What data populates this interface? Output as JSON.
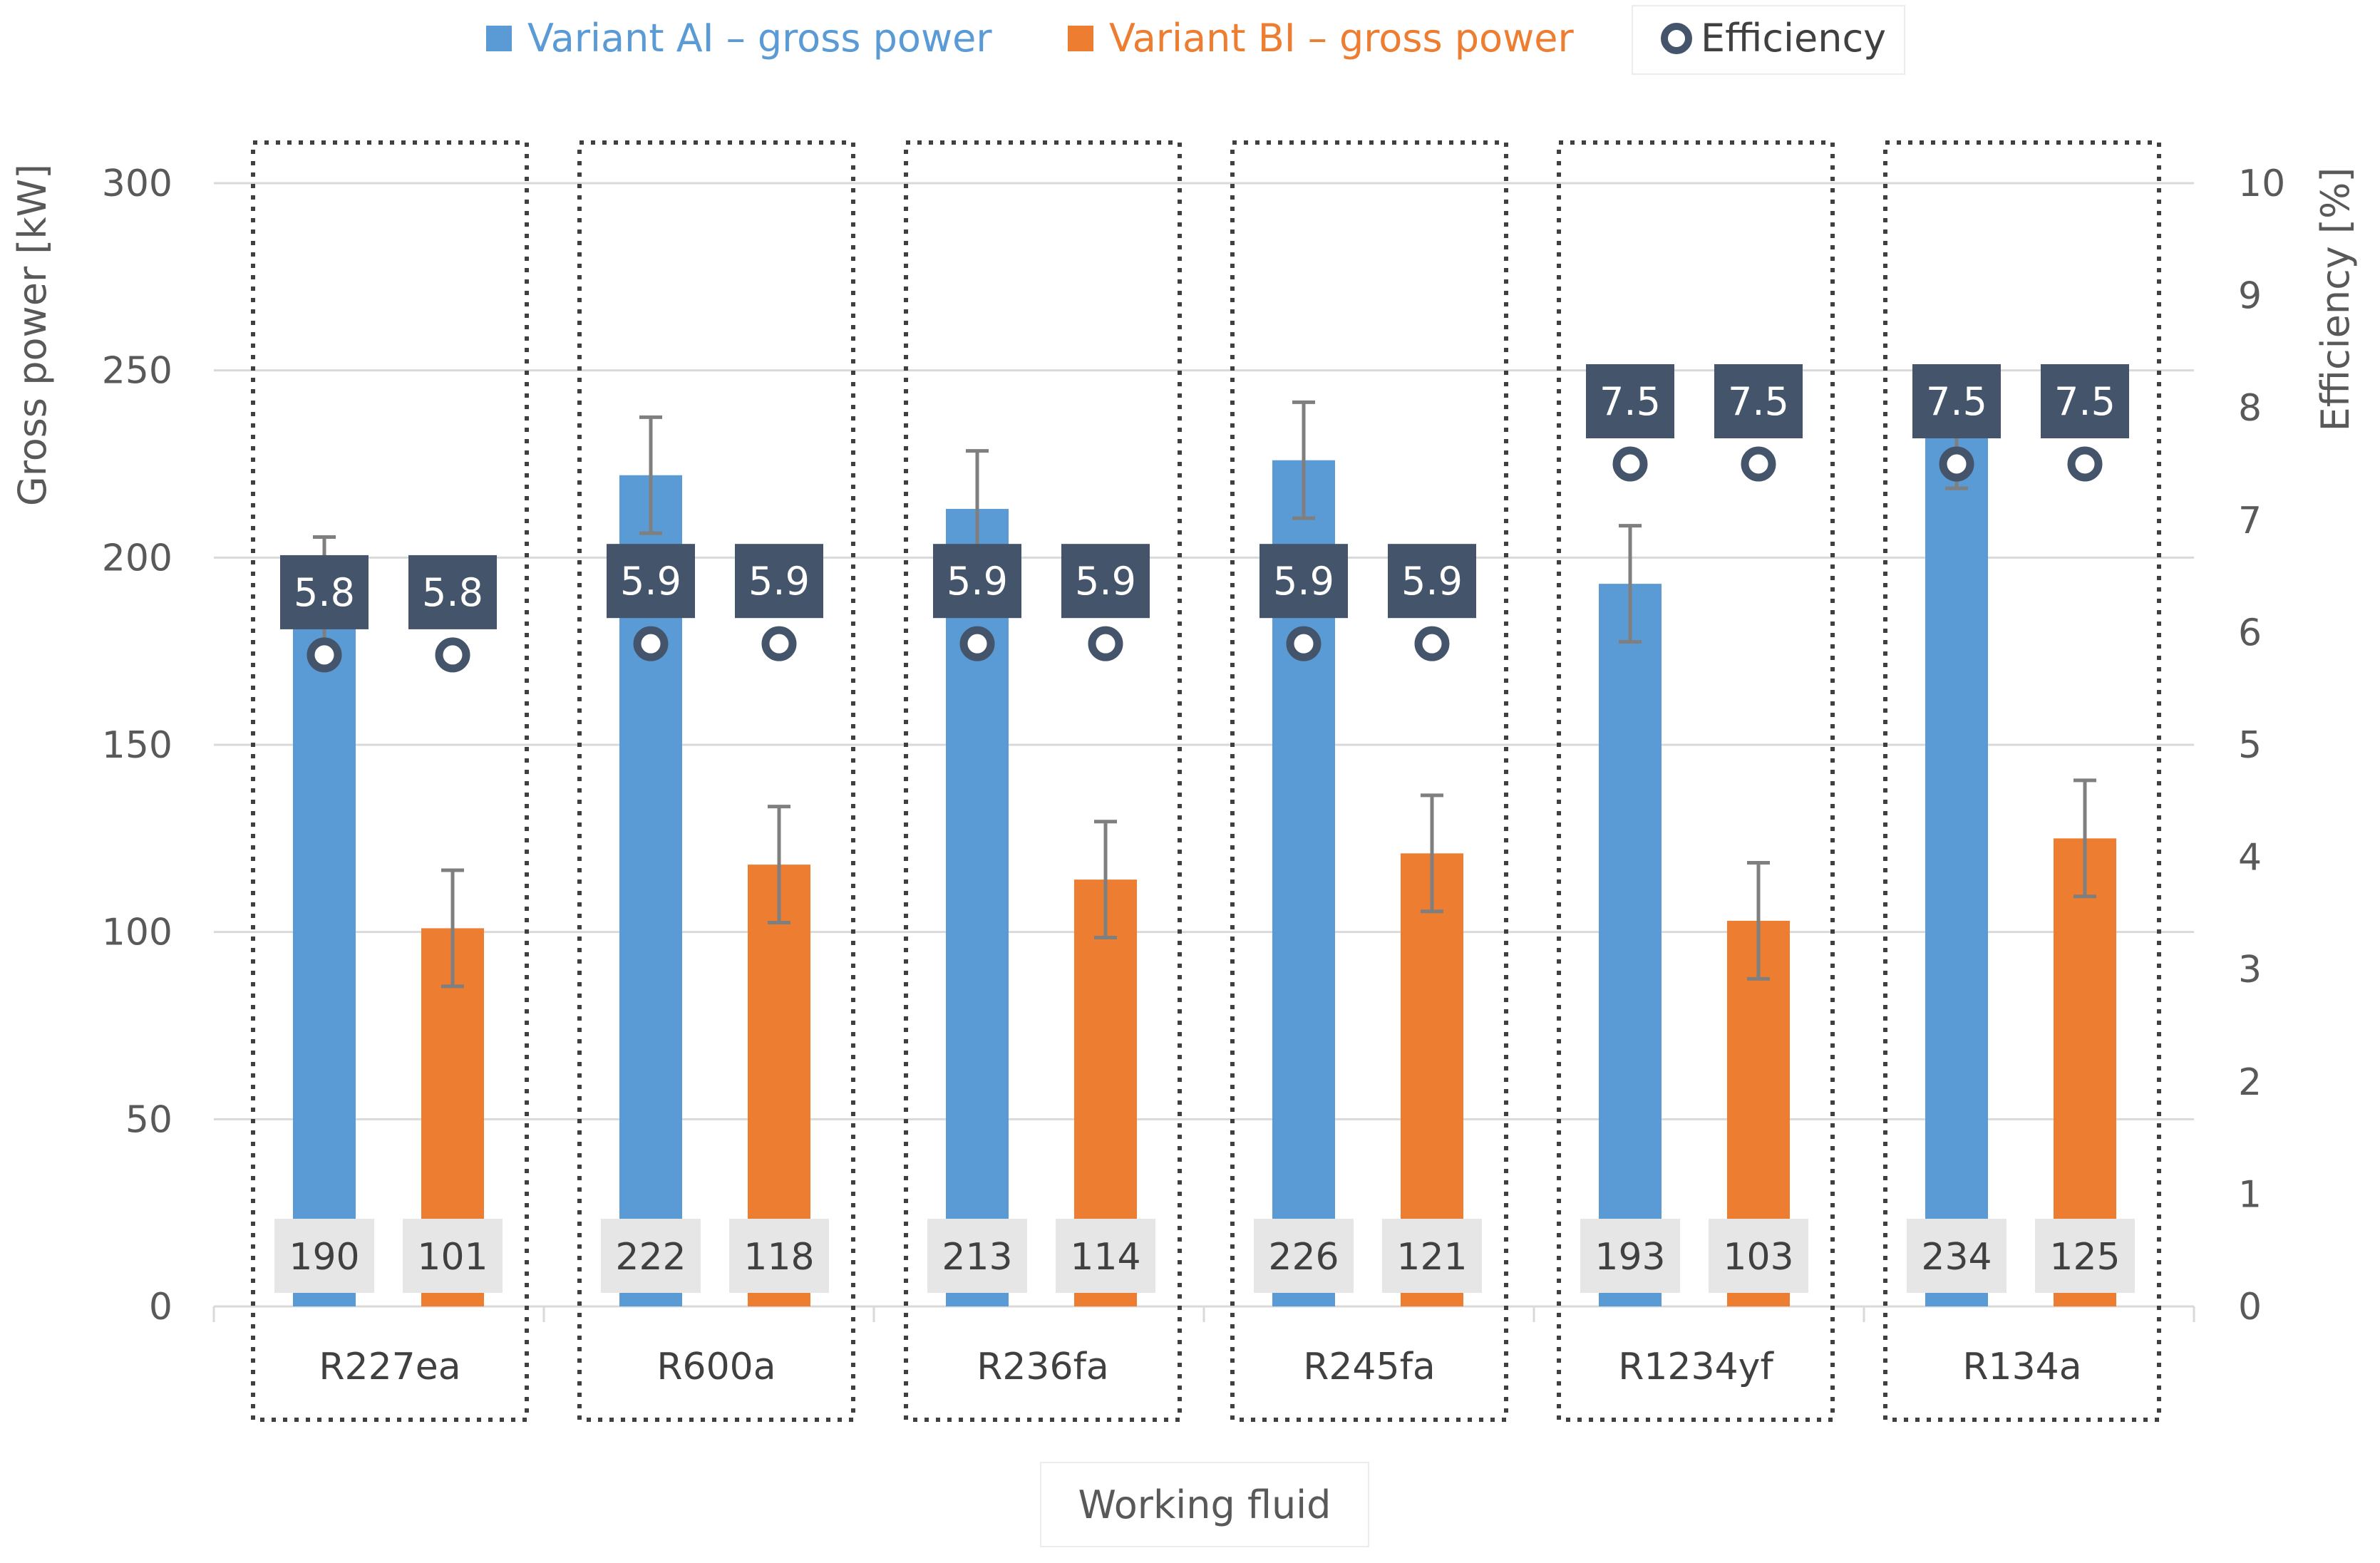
{
  "colors": {
    "series_a": "#5b9bd5",
    "series_b": "#ed7d31",
    "efficiency": "#44546a",
    "grid": "#d9d9d9",
    "text": "#595959",
    "label_bg": "#e7e6e6"
  },
  "chart_data": {
    "type": "bar",
    "xlabel": "Working fluid",
    "ylabel": "Gross power [kW]",
    "y2label": "Efficiency [%]",
    "ylim": [
      0,
      300
    ],
    "y2lim": [
      0,
      10
    ],
    "yticks": [
      "0",
      "50",
      "100",
      "150",
      "200",
      "250",
      "300"
    ],
    "y2ticks": [
      "0",
      "1",
      "2",
      "3",
      "4",
      "5",
      "6",
      "7",
      "8",
      "9",
      "10"
    ],
    "legend_position": "top",
    "grid": true,
    "categories": [
      "R227ea",
      "R600a",
      "R236fa",
      "R245fa",
      "R1234yf",
      "R134a"
    ],
    "series": [
      {
        "name": "Variant AI – gross power",
        "values": [
          190,
          222,
          213,
          226,
          193,
          234
        ],
        "error": 15.5
      },
      {
        "name": "Variant BI – gross power",
        "values": [
          101,
          118,
          114,
          121,
          103,
          125
        ],
        "error": 15.5
      }
    ],
    "efficiency": {
      "name": "Efficiency",
      "a": [
        5.8,
        5.9,
        5.9,
        5.9,
        7.5,
        7.5
      ],
      "b": [
        5.8,
        5.9,
        5.9,
        5.9,
        7.5,
        7.5
      ]
    }
  }
}
